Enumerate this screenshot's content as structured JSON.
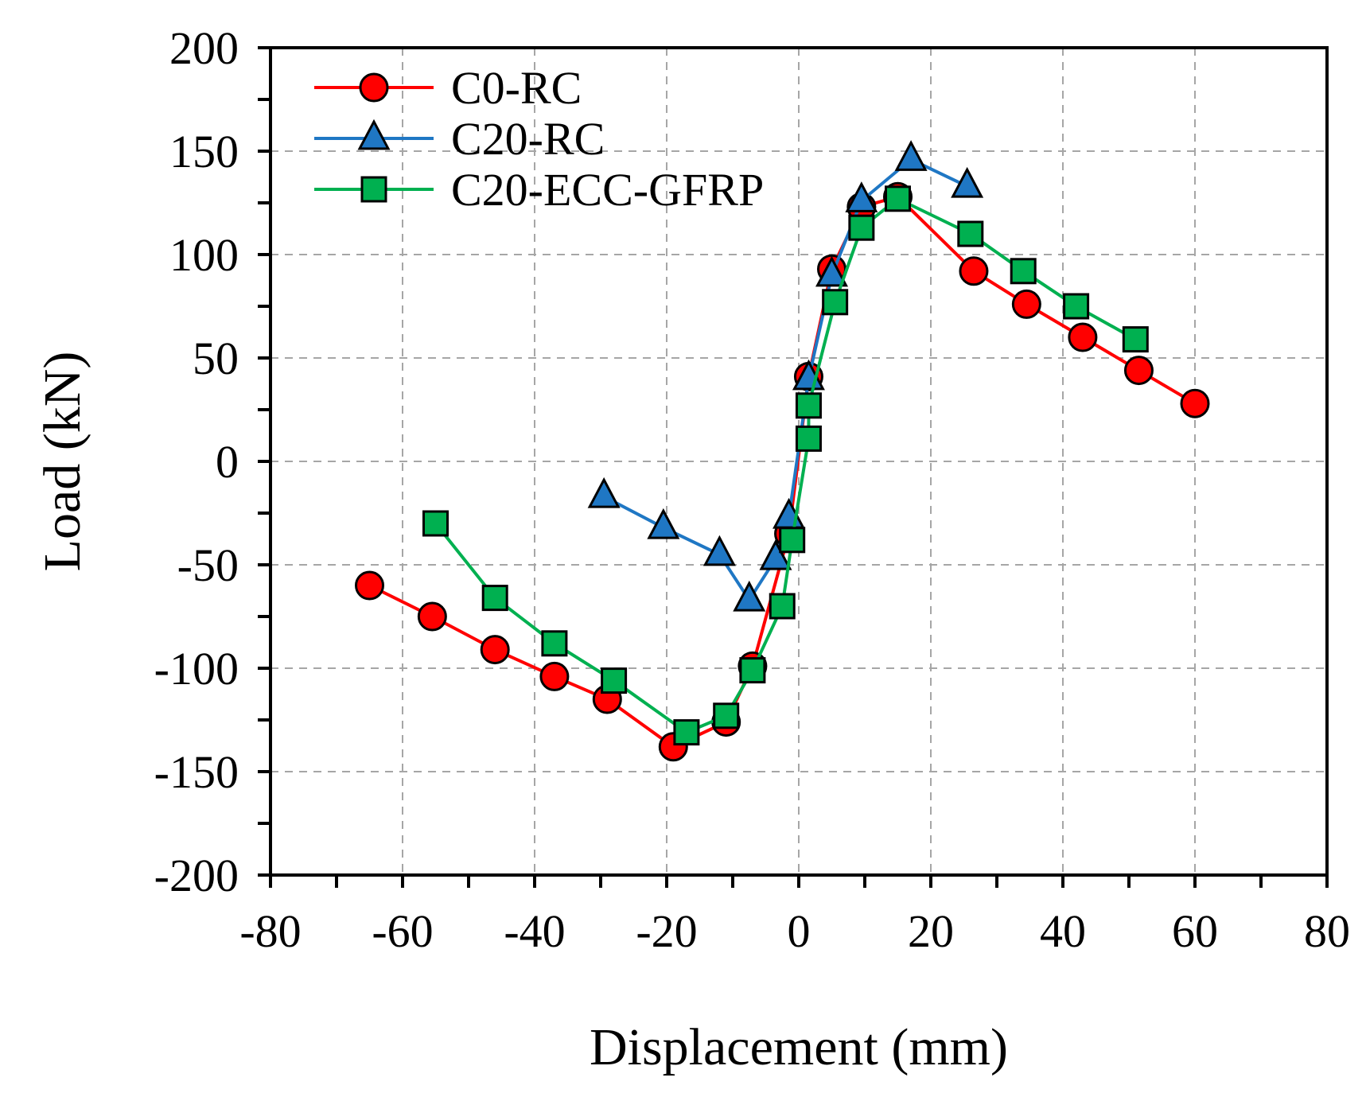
{
  "chart_data": {
    "type": "line",
    "title": "",
    "xlabel": "Displacement (mm)",
    "ylabel": "Load (kN)",
    "xlim": [
      -80,
      80
    ],
    "ylim": [
      -200,
      200
    ],
    "xticks": [
      -80,
      -60,
      -40,
      -20,
      0,
      20,
      40,
      60,
      80
    ],
    "yticks": [
      -200,
      -150,
      -100,
      -50,
      0,
      50,
      100,
      150,
      200
    ],
    "xtick_labels": [
      "-80",
      "-60",
      "-40",
      "-20",
      "0",
      "20",
      "40",
      "60",
      "80"
    ],
    "ytick_labels": [
      "-200",
      "-150",
      "-100",
      "-50",
      "0",
      "50",
      "100",
      "150",
      "200"
    ],
    "grid": true,
    "legend_position": "top-left",
    "series": [
      {
        "name": "C0-RC",
        "color": "#ff0000",
        "marker": "circle",
        "marker_color": "#ff0000",
        "x": [
          -65,
          -55.5,
          -46,
          -37,
          -29,
          -19,
          -11,
          -7,
          -1.5,
          1.5,
          5,
          9.5,
          15,
          26.5,
          34.5,
          43,
          51.5,
          60
        ],
        "y": [
          -60,
          -75,
          -91,
          -104,
          -115,
          -138,
          -126,
          -99,
          -35,
          41,
          93,
          123,
          128,
          92,
          76,
          60,
          44,
          28
        ]
      },
      {
        "name": "C20-RC",
        "color": "#1f77c4",
        "marker": "triangle",
        "marker_color": "#1f77c4",
        "x": [
          -29.5,
          -20.5,
          -12,
          -7.5,
          -3.5,
          -1.5,
          1.5,
          5,
          9.5,
          17,
          25.5
        ],
        "y": [
          -17,
          -32,
          -45,
          -67,
          -47,
          -27,
          40,
          90,
          126,
          146,
          133
        ]
      },
      {
        "name": "C20-ECC-GFRP",
        "color": "#00b050",
        "marker": "square",
        "marker_color": "#00b050",
        "x": [
          -55,
          -46,
          -37,
          -28,
          -17,
          -11,
          -7,
          -2.5,
          -1,
          1.5,
          1.5,
          5.5,
          9.5,
          15,
          26,
          34,
          42,
          51
        ],
        "y": [
          -30,
          -66,
          -88,
          -106,
          -131,
          -123,
          -101,
          -70,
          -38,
          11,
          27,
          77,
          113,
          127,
          110,
          92,
          75,
          59
        ]
      }
    ]
  }
}
